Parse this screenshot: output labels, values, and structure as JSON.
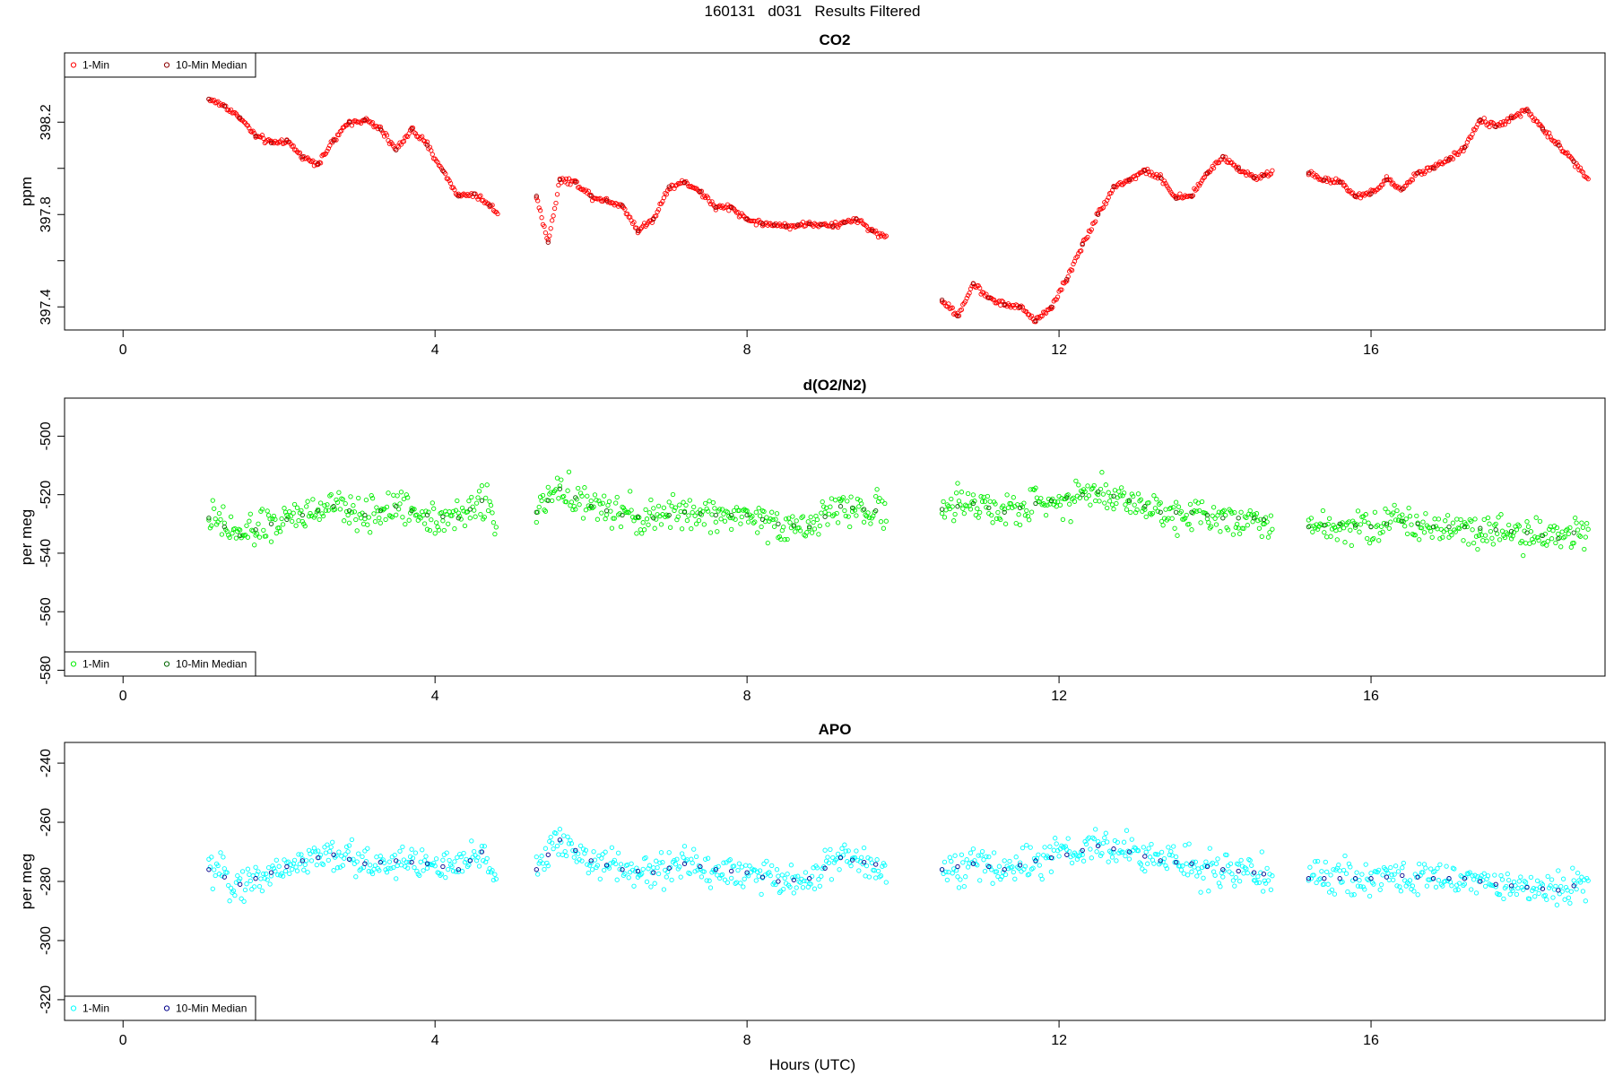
{
  "figure": {
    "title": "160131   d031   Results Filtered",
    "xlabel": "Hours (UTC)"
  },
  "chart_data": [
    {
      "type": "scatter",
      "title": "CO2",
      "xlabel": "",
      "ylabel": "ppm",
      "xlim": [
        -0.75,
        19.0
      ],
      "ylim": [
        397.3,
        398.5
      ],
      "xticks": [
        0,
        4,
        8,
        12,
        16
      ],
      "yticks": [
        397.4,
        397.6,
        397.8,
        398.0,
        398.2
      ],
      "ytick_labels": [
        "397.4",
        "",
        "397.8",
        "",
        "398.2"
      ],
      "legend": {
        "position": "top-left",
        "entries": [
          "1-Min",
          "10-Min Median"
        ]
      },
      "series": [
        {
          "name": "1-Min",
          "color": "#ff0000",
          "segments": [
            [
              [
                1.1,
                398.3
              ],
              [
                1.3,
                398.27
              ],
              [
                1.5,
                398.22
              ],
              [
                1.7,
                398.14
              ],
              [
                1.9,
                398.11
              ],
              [
                2.1,
                398.12
              ],
              [
                2.3,
                398.05
              ],
              [
                2.5,
                398.02
              ],
              [
                2.7,
                398.12
              ],
              [
                2.9,
                398.2
              ],
              [
                3.1,
                398.21
              ],
              [
                3.3,
                398.17
              ],
              [
                3.5,
                398.08
              ],
              [
                3.7,
                398.17
              ],
              [
                3.9,
                398.1
              ],
              [
                4.1,
                397.99
              ],
              [
                4.3,
                397.88
              ],
              [
                4.5,
                397.89
              ],
              [
                4.7,
                397.84
              ],
              [
                4.82,
                397.8
              ]
            ],
            [
              [
                5.3,
                397.88
              ],
              [
                5.45,
                397.68
              ],
              [
                5.6,
                397.95
              ],
              [
                5.8,
                397.94
              ],
              [
                6.0,
                397.88
              ],
              [
                6.2,
                397.86
              ],
              [
                6.4,
                397.84
              ],
              [
                6.6,
                397.73
              ],
              [
                6.8,
                397.78
              ],
              [
                7.0,
                397.92
              ],
              [
                7.2,
                397.94
              ],
              [
                7.4,
                397.9
              ],
              [
                7.6,
                397.83
              ],
              [
                7.8,
                397.83
              ],
              [
                8.0,
                397.78
              ],
              [
                8.2,
                397.76
              ],
              [
                8.5,
                397.75
              ],
              [
                8.8,
                397.76
              ],
              [
                9.1,
                397.75
              ],
              [
                9.4,
                397.78
              ],
              [
                9.6,
                397.73
              ],
              [
                9.8,
                397.7
              ]
            ],
            [
              [
                10.5,
                397.43
              ],
              [
                10.7,
                397.36
              ],
              [
                10.9,
                397.5
              ],
              [
                11.1,
                397.44
              ],
              [
                11.3,
                397.41
              ],
              [
                11.5,
                397.4
              ],
              [
                11.7,
                397.34
              ],
              [
                11.9,
                397.4
              ],
              [
                12.1,
                397.52
              ],
              [
                12.3,
                397.67
              ],
              [
                12.5,
                397.8
              ],
              [
                12.7,
                397.92
              ],
              [
                12.9,
                397.95
              ],
              [
                13.1,
                397.99
              ],
              [
                13.3,
                397.96
              ],
              [
                13.5,
                397.87
              ],
              [
                13.7,
                397.88
              ],
              [
                13.9,
                397.98
              ],
              [
                14.1,
                398.05
              ],
              [
                14.3,
                398.0
              ],
              [
                14.5,
                397.96
              ],
              [
                14.75,
                397.98
              ]
            ],
            [
              [
                15.2,
                397.98
              ],
              [
                15.4,
                397.95
              ],
              [
                15.6,
                397.94
              ],
              [
                15.8,
                397.88
              ],
              [
                16.0,
                397.89
              ],
              [
                16.2,
                397.95
              ],
              [
                16.4,
                397.91
              ],
              [
                16.6,
                397.98
              ],
              [
                16.8,
                398.0
              ],
              [
                17.0,
                398.04
              ],
              [
                17.2,
                398.09
              ],
              [
                17.4,
                398.21
              ],
              [
                17.6,
                398.18
              ],
              [
                17.8,
                398.22
              ],
              [
                18.0,
                398.25
              ],
              [
                18.2,
                398.17
              ],
              [
                18.4,
                398.1
              ],
              [
                18.6,
                398.03
              ],
              [
                18.8,
                397.95
              ]
            ]
          ]
        },
        {
          "name": "10-Min Median",
          "color": "#8b0000",
          "segments": []
        }
      ]
    },
    {
      "type": "scatter",
      "title": "d(O2/N2)",
      "xlabel": "",
      "ylabel": "per meg",
      "xlim": [
        -0.75,
        19.0
      ],
      "ylim": [
        -582,
        -487
      ],
      "xticks": [
        0,
        4,
        8,
        12,
        16
      ],
      "yticks": [
        -580,
        -560,
        -540,
        -520,
        -500
      ],
      "ytick_labels": [
        "-580",
        "-560",
        "-540",
        "-520",
        "-500"
      ],
      "legend": {
        "position": "bottom-left",
        "entries": [
          "1-Min",
          "10-Min Median"
        ]
      },
      "series": [
        {
          "name": "1-Min",
          "color": "#00ee00",
          "segments": [
            [
              [
                1.1,
                -528
              ],
              [
                1.5,
                -534
              ],
              [
                1.9,
                -530
              ],
              [
                2.3,
                -527
              ],
              [
                2.7,
                -524
              ],
              [
                3.1,
                -527
              ],
              [
                3.5,
                -524
              ],
              [
                3.9,
                -527
              ],
              [
                4.3,
                -528
              ],
              [
                4.6,
                -522
              ],
              [
                4.8,
                -528
              ]
            ],
            [
              [
                5.3,
                -526
              ],
              [
                5.6,
                -518
              ],
              [
                6.0,
                -524
              ],
              [
                6.4,
                -527
              ],
              [
                6.8,
                -528
              ],
              [
                7.2,
                -526
              ],
              [
                7.6,
                -527
              ],
              [
                8.0,
                -527
              ],
              [
                8.4,
                -530
              ],
              [
                8.8,
                -531
              ],
              [
                9.2,
                -524
              ],
              [
                9.8,
                -526
              ]
            ],
            [
              [
                10.5,
                -525
              ],
              [
                10.9,
                -523
              ],
              [
                11.3,
                -526
              ],
              [
                11.7,
                -523
              ],
              [
                12.1,
                -521
              ],
              [
                12.5,
                -519
              ],
              [
                12.9,
                -522
              ],
              [
                13.3,
                -526
              ],
              [
                13.7,
                -526
              ],
              [
                14.1,
                -528
              ],
              [
                14.5,
                -528
              ],
              [
                14.75,
                -529
              ]
            ],
            [
              [
                15.2,
                -531
              ],
              [
                15.6,
                -530
              ],
              [
                16.0,
                -531
              ],
              [
                16.4,
                -529
              ],
              [
                16.8,
                -531
              ],
              [
                17.2,
                -531
              ],
              [
                17.6,
                -532
              ],
              [
                18.0,
                -533
              ],
              [
                18.4,
                -535
              ],
              [
                18.8,
                -531
              ]
            ]
          ]
        },
        {
          "name": "10-Min Median",
          "color": "#006400",
          "segments": []
        }
      ]
    },
    {
      "type": "scatter",
      "title": "APO",
      "xlabel": "Hours (UTC)",
      "ylabel": "per meg",
      "xlim": [
        -0.75,
        19.0
      ],
      "ylim": [
        -327,
        -233
      ],
      "xticks": [
        0,
        4,
        8,
        12,
        16
      ],
      "yticks": [
        -320,
        -300,
        -280,
        -260,
        -240
      ],
      "ytick_labels": [
        "-320",
        "-300",
        "-280",
        "-260",
        "-240"
      ],
      "legend": {
        "position": "bottom-left",
        "entries": [
          "1-Min",
          "10-Min Median"
        ]
      },
      "series": [
        {
          "name": "1-Min",
          "color": "#00ffff",
          "segments": [
            [
              [
                1.1,
                -276
              ],
              [
                1.5,
                -281
              ],
              [
                1.9,
                -277
              ],
              [
                2.3,
                -273
              ],
              [
                2.7,
                -271
              ],
              [
                3.1,
                -274
              ],
              [
                3.5,
                -273
              ],
              [
                3.9,
                -274
              ],
              [
                4.3,
                -276
              ],
              [
                4.6,
                -270
              ],
              [
                4.8,
                -278
              ]
            ],
            [
              [
                5.3,
                -276
              ],
              [
                5.6,
                -266
              ],
              [
                6.0,
                -273
              ],
              [
                6.4,
                -276
              ],
              [
                6.8,
                -277
              ],
              [
                7.2,
                -274
              ],
              [
                7.6,
                -276
              ],
              [
                8.0,
                -277
              ],
              [
                8.4,
                -280
              ],
              [
                8.8,
                -279
              ],
              [
                9.2,
                -272
              ],
              [
                9.8,
                -275
              ]
            ],
            [
              [
                10.5,
                -276
              ],
              [
                10.9,
                -274
              ],
              [
                11.3,
                -276
              ],
              [
                11.7,
                -273
              ],
              [
                12.1,
                -271
              ],
              [
                12.5,
                -268
              ],
              [
                12.9,
                -270
              ],
              [
                13.3,
                -273
              ],
              [
                13.7,
                -274
              ],
              [
                14.1,
                -276
              ],
              [
                14.5,
                -277
              ],
              [
                14.75,
                -278
              ]
            ],
            [
              [
                15.2,
                -279
              ],
              [
                15.6,
                -279
              ],
              [
                16.0,
                -279
              ],
              [
                16.4,
                -278
              ],
              [
                16.8,
                -279
              ],
              [
                17.2,
                -279
              ],
              [
                17.6,
                -281
              ],
              [
                18.0,
                -282
              ],
              [
                18.4,
                -283
              ],
              [
                18.8,
                -280
              ]
            ]
          ]
        },
        {
          "name": "10-Min Median",
          "color": "#00008b",
          "segments": []
        }
      ]
    }
  ]
}
